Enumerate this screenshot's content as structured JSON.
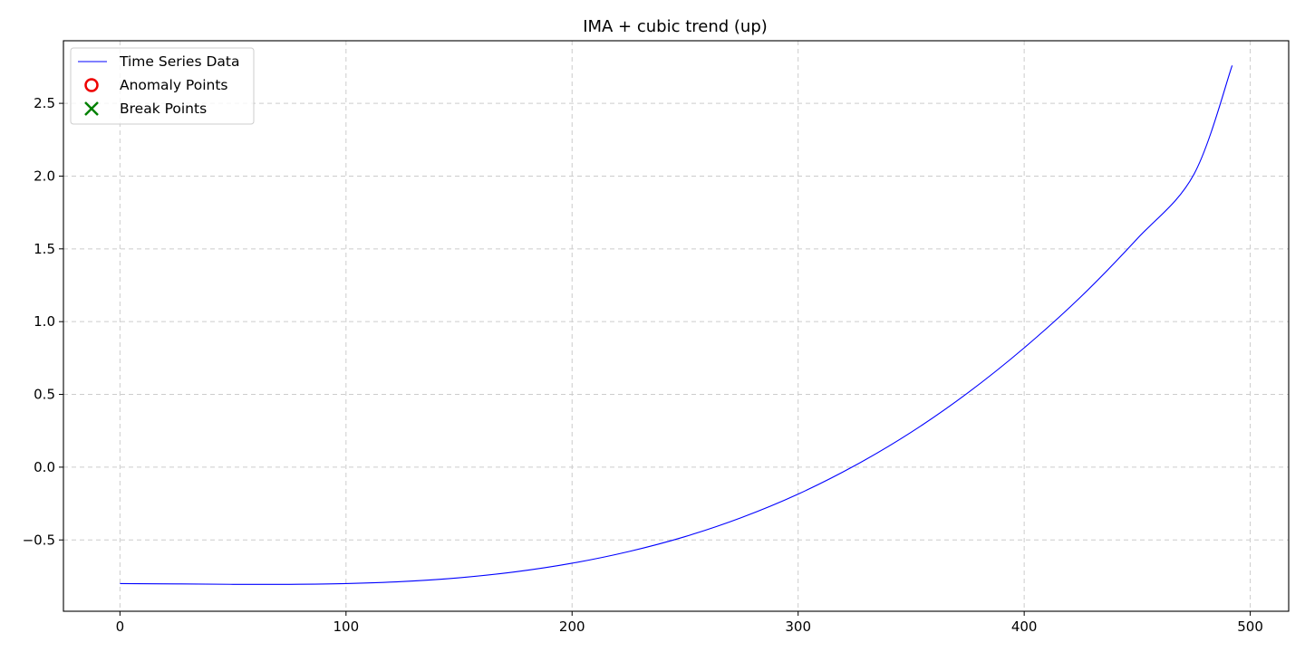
{
  "chart_data": {
    "type": "line",
    "title": "IMA + cubic trend (up)",
    "xlabel": "",
    "ylabel": "",
    "xlim": [
      -25,
      517
    ],
    "ylim": [
      -0.99,
      2.93
    ],
    "x_ticks": [
      0,
      100,
      200,
      300,
      400,
      500
    ],
    "y_ticks": [
      -0.5,
      0.0,
      0.5,
      1.0,
      1.5,
      2.0,
      2.5
    ],
    "grid": true,
    "legend_position": "top-left",
    "series": [
      {
        "name": "Time Series Data",
        "kind": "line",
        "color": "#0000ff",
        "x": [
          0,
          25,
          50,
          75,
          100,
          125,
          150,
          175,
          200,
          225,
          250,
          275,
          300,
          325,
          350,
          375,
          400,
          425,
          450,
          475,
          492
        ],
        "y": [
          -0.8,
          -0.802,
          -0.805,
          -0.805,
          -0.8,
          -0.786,
          -0.76,
          -0.719,
          -0.66,
          -0.58,
          -0.477,
          -0.346,
          -0.185,
          0.01,
          0.24,
          0.51,
          0.82,
          1.17,
          1.57,
          2.01,
          2.76
        ]
      },
      {
        "name": "Anomaly Points",
        "kind": "scatter",
        "marker": "circle-open",
        "color": "#ee0000",
        "x": [],
        "y": []
      },
      {
        "name": "Break Points",
        "kind": "scatter",
        "marker": "x",
        "color": "#008000",
        "x": [],
        "y": []
      }
    ]
  }
}
